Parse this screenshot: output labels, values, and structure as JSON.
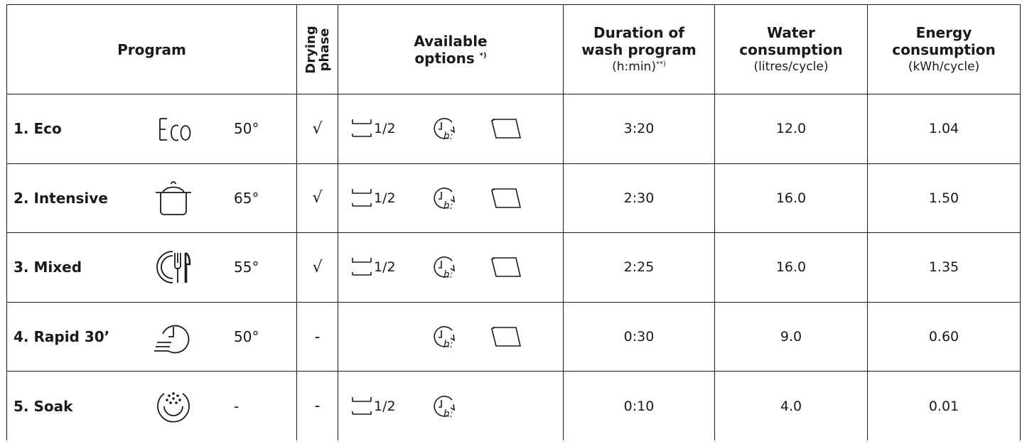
{
  "headers": {
    "program": "Program",
    "drying_line1": "Drying",
    "drying_line2": "phase",
    "options_line1": "Available",
    "options_line2": "options",
    "options_sup": "*)",
    "duration_line1": "Duration of",
    "duration_line2": "wash program",
    "duration_unit": "(h:min)",
    "duration_sup": "**)",
    "water_line1": "Water",
    "water_line2": "consumption",
    "water_unit": "(litres/cycle)",
    "energy_line1": "Energy",
    "energy_line2": "consumption",
    "energy_unit": "(kWh/cycle)"
  },
  "option_half_label": "1/2",
  "icons": {
    "eco_text": "Eco",
    "half_load": "half-load-icon",
    "delay_start": "delay-start-icon",
    "tablet": "tablet-icon"
  },
  "rows": [
    {
      "name": "1. Eco",
      "icon": "eco-icon",
      "temp": "50°",
      "drying": "√",
      "duration": "3:20",
      "water": "12.0",
      "energy": "1.04"
    },
    {
      "name": "2. Intensive",
      "icon": "pot-icon",
      "temp": "65°",
      "drying": "√",
      "duration": "2:30",
      "water": "16.0",
      "energy": "1.50"
    },
    {
      "name": "3. Mixed",
      "icon": "plate-cutlery-icon",
      "temp": "55°",
      "drying": "√",
      "duration": "2:25",
      "water": "16.0",
      "energy": "1.35"
    },
    {
      "name": "4. Rapid 30’",
      "icon": "rapid-clock-icon",
      "temp": "50°",
      "drying": "-",
      "duration": "0:30",
      "water": "9.0",
      "energy": "0.60"
    },
    {
      "name": "5. Soak",
      "icon": "soak-icon",
      "temp": "-",
      "drying": "-",
      "duration": "0:10",
      "water": "4.0",
      "energy": "0.01"
    }
  ]
}
